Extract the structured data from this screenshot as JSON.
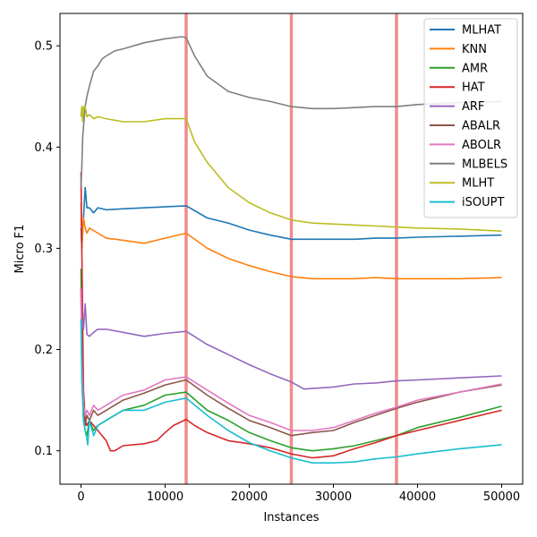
{
  "chart_data": {
    "type": "line",
    "xlabel": "Instances",
    "ylabel": "Micro F1",
    "xlim": [
      -2500,
      52500
    ],
    "ylim": [
      0.067,
      0.532
    ],
    "xticks": [
      0,
      10000,
      20000,
      30000,
      40000,
      50000
    ],
    "xtick_labels": [
      "0",
      "10000",
      "20000",
      "30000",
      "40000",
      "50000"
    ],
    "yticks": [
      0.1,
      0.2,
      0.3,
      0.4,
      0.5
    ],
    "ytick_labels": [
      "0.1",
      "0.2",
      "0.3",
      "0.4",
      "0.5"
    ],
    "grid": false,
    "legend_position": "top-right",
    "drift_lines": {
      "x": [
        12500,
        25000,
        37500
      ],
      "color": "#f08080"
    },
    "series": [
      {
        "name": "MLHAT",
        "color": "#1f77b4",
        "x": [
          0,
          100,
          300,
          500,
          700,
          1000,
          1500,
          2000,
          3000,
          5000,
          7500,
          10000,
          12500,
          15000,
          17500,
          20000,
          22500,
          25000,
          27500,
          30000,
          32500,
          35000,
          37500,
          40000,
          45000,
          50000
        ],
        "y": [
          0.32,
          0.3,
          0.33,
          0.36,
          0.34,
          0.34,
          0.335,
          0.34,
          0.338,
          0.339,
          0.34,
          0.341,
          0.342,
          0.33,
          0.325,
          0.318,
          0.313,
          0.309,
          0.309,
          0.309,
          0.309,
          0.31,
          0.31,
          0.311,
          0.312,
          0.313
        ]
      },
      {
        "name": "KNN",
        "color": "#ff7f0e",
        "x": [
          0,
          100,
          300,
          500,
          700,
          1000,
          2000,
          3000,
          5000,
          7500,
          10000,
          12500,
          15000,
          17500,
          20000,
          22500,
          25000,
          27500,
          30000,
          32500,
          35000,
          37500,
          40000,
          45000,
          50000
        ],
        "y": [
          0.345,
          0.3,
          0.33,
          0.32,
          0.315,
          0.32,
          0.315,
          0.31,
          0.308,
          0.305,
          0.31,
          0.315,
          0.3,
          0.29,
          0.283,
          0.277,
          0.272,
          0.27,
          0.27,
          0.27,
          0.271,
          0.27,
          0.27,
          0.27,
          0.271
        ]
      },
      {
        "name": "AMR",
        "color": "#2ca02c",
        "x": [
          0,
          100,
          300,
          500,
          700,
          1000,
          1500,
          2000,
          3000,
          5000,
          7500,
          10000,
          12500,
          15000,
          17500,
          20000,
          22500,
          25000,
          27500,
          30000,
          32500,
          35000,
          37500,
          40000,
          45000,
          50000
        ],
        "y": [
          0.28,
          0.18,
          0.13,
          0.12,
          0.115,
          0.13,
          0.12,
          0.125,
          0.13,
          0.14,
          0.145,
          0.155,
          0.158,
          0.14,
          0.13,
          0.118,
          0.11,
          0.103,
          0.1,
          0.102,
          0.105,
          0.11,
          0.115,
          0.123,
          0.133,
          0.144
        ]
      },
      {
        "name": "HAT",
        "color": "#d62728",
        "x": [
          0,
          100,
          300,
          500,
          700,
          1000,
          1500,
          2000,
          3000,
          3500,
          4000,
          5000,
          7500,
          9000,
          10000,
          11000,
          12500,
          13500,
          15000,
          17500,
          20000,
          22500,
          25000,
          27500,
          30000,
          32500,
          35000,
          37500,
          40000,
          45000,
          50000
        ],
        "y": [
          0.375,
          0.3,
          0.16,
          0.13,
          0.125,
          0.13,
          0.125,
          0.12,
          0.11,
          0.1,
          0.1,
          0.105,
          0.107,
          0.11,
          0.118,
          0.125,
          0.131,
          0.125,
          0.118,
          0.11,
          0.107,
          0.103,
          0.097,
          0.093,
          0.095,
          0.102,
          0.108,
          0.115,
          0.12,
          0.13,
          0.14
        ]
      },
      {
        "name": "ARF",
        "color": "#9467bd",
        "x": [
          0,
          100,
          300,
          500,
          700,
          1000,
          1500,
          2000,
          3000,
          5000,
          7500,
          10000,
          12500,
          15000,
          17500,
          20000,
          22500,
          25000,
          26500,
          30000,
          32500,
          35000,
          37500,
          40000,
          45000,
          50000
        ],
        "y": [
          0.26,
          0.23,
          0.22,
          0.245,
          0.215,
          0.213,
          0.217,
          0.22,
          0.22,
          0.217,
          0.213,
          0.216,
          0.218,
          0.205,
          0.195,
          0.185,
          0.176,
          0.168,
          0.161,
          0.163,
          0.166,
          0.167,
          0.169,
          0.17,
          0.172,
          0.174
        ]
      },
      {
        "name": "ABALR",
        "color": "#8c564b",
        "x": [
          0,
          100,
          300,
          500,
          700,
          1000,
          1500,
          2000,
          3000,
          5000,
          7500,
          10000,
          12500,
          15000,
          17500,
          20000,
          22500,
          25000,
          27500,
          30000,
          32500,
          35000,
          37500,
          40000,
          45000,
          50000
        ],
        "y": [
          0.26,
          0.18,
          0.14,
          0.125,
          0.135,
          0.13,
          0.14,
          0.135,
          0.14,
          0.15,
          0.157,
          0.165,
          0.17,
          0.155,
          0.142,
          0.13,
          0.123,
          0.115,
          0.118,
          0.12,
          0.128,
          0.135,
          0.142,
          0.148,
          0.158,
          0.165
        ]
      },
      {
        "name": "ABOLR",
        "color": "#e377c2",
        "x": [
          0,
          100,
          300,
          500,
          700,
          1000,
          1500,
          2000,
          3000,
          5000,
          7500,
          10000,
          12500,
          15000,
          17500,
          20000,
          22500,
          25000,
          27500,
          30000,
          32500,
          35000,
          37500,
          40000,
          45000,
          50000
        ],
        "y": [
          0.26,
          0.19,
          0.145,
          0.135,
          0.14,
          0.135,
          0.145,
          0.14,
          0.145,
          0.155,
          0.16,
          0.17,
          0.173,
          0.16,
          0.147,
          0.135,
          0.128,
          0.12,
          0.12,
          0.123,
          0.13,
          0.137,
          0.143,
          0.15,
          0.158,
          0.166
        ]
      },
      {
        "name": "MLBELS",
        "color": "#7f7f7f",
        "x": [
          0,
          100,
          200,
          300,
          500,
          700,
          1000,
          1500,
          2000,
          2500,
          3000,
          4000,
          5000,
          7500,
          10000,
          12000,
          12500,
          13500,
          15000,
          17500,
          20000,
          22500,
          25000,
          27500,
          30000,
          32500,
          35000,
          37500,
          40000,
          45000,
          50000
        ],
        "y": [
          0.36,
          0.38,
          0.41,
          0.42,
          0.44,
          0.45,
          0.46,
          0.475,
          0.48,
          0.487,
          0.49,
          0.495,
          0.497,
          0.503,
          0.507,
          0.509,
          0.508,
          0.49,
          0.47,
          0.455,
          0.449,
          0.445,
          0.44,
          0.438,
          0.438,
          0.439,
          0.44,
          0.44,
          0.442,
          0.444,
          0.445
        ]
      },
      {
        "name": "MLHT",
        "color": "#bcbd22",
        "x": [
          0,
          100,
          200,
          300,
          500,
          700,
          1000,
          1500,
          2000,
          3000,
          5000,
          7500,
          10000,
          12500,
          13500,
          15000,
          17500,
          20000,
          22500,
          25000,
          27500,
          30000,
          32500,
          35000,
          37500,
          40000,
          45000,
          50000
        ],
        "y": [
          0.43,
          0.44,
          0.425,
          0.44,
          0.44,
          0.43,
          0.432,
          0.428,
          0.43,
          0.428,
          0.425,
          0.425,
          0.428,
          0.428,
          0.405,
          0.385,
          0.36,
          0.345,
          0.335,
          0.328,
          0.325,
          0.324,
          0.323,
          0.322,
          0.321,
          0.32,
          0.319,
          0.317
        ]
      },
      {
        "name": "iSOUPT",
        "color": "#17becf",
        "x": [
          0,
          100,
          300,
          500,
          700,
          800,
          1000,
          1500,
          2000,
          3000,
          5000,
          7500,
          10000,
          12500,
          15000,
          17500,
          20000,
          22500,
          25000,
          27500,
          30000,
          32500,
          35000,
          37500,
          40000,
          45000,
          50000
        ],
        "y": [
          0.23,
          0.17,
          0.13,
          0.12,
          0.112,
          0.106,
          0.13,
          0.115,
          0.125,
          0.13,
          0.14,
          0.14,
          0.148,
          0.152,
          0.135,
          0.12,
          0.108,
          0.1,
          0.093,
          0.088,
          0.088,
          0.089,
          0.092,
          0.094,
          0.097,
          0.102,
          0.106
        ]
      }
    ]
  }
}
